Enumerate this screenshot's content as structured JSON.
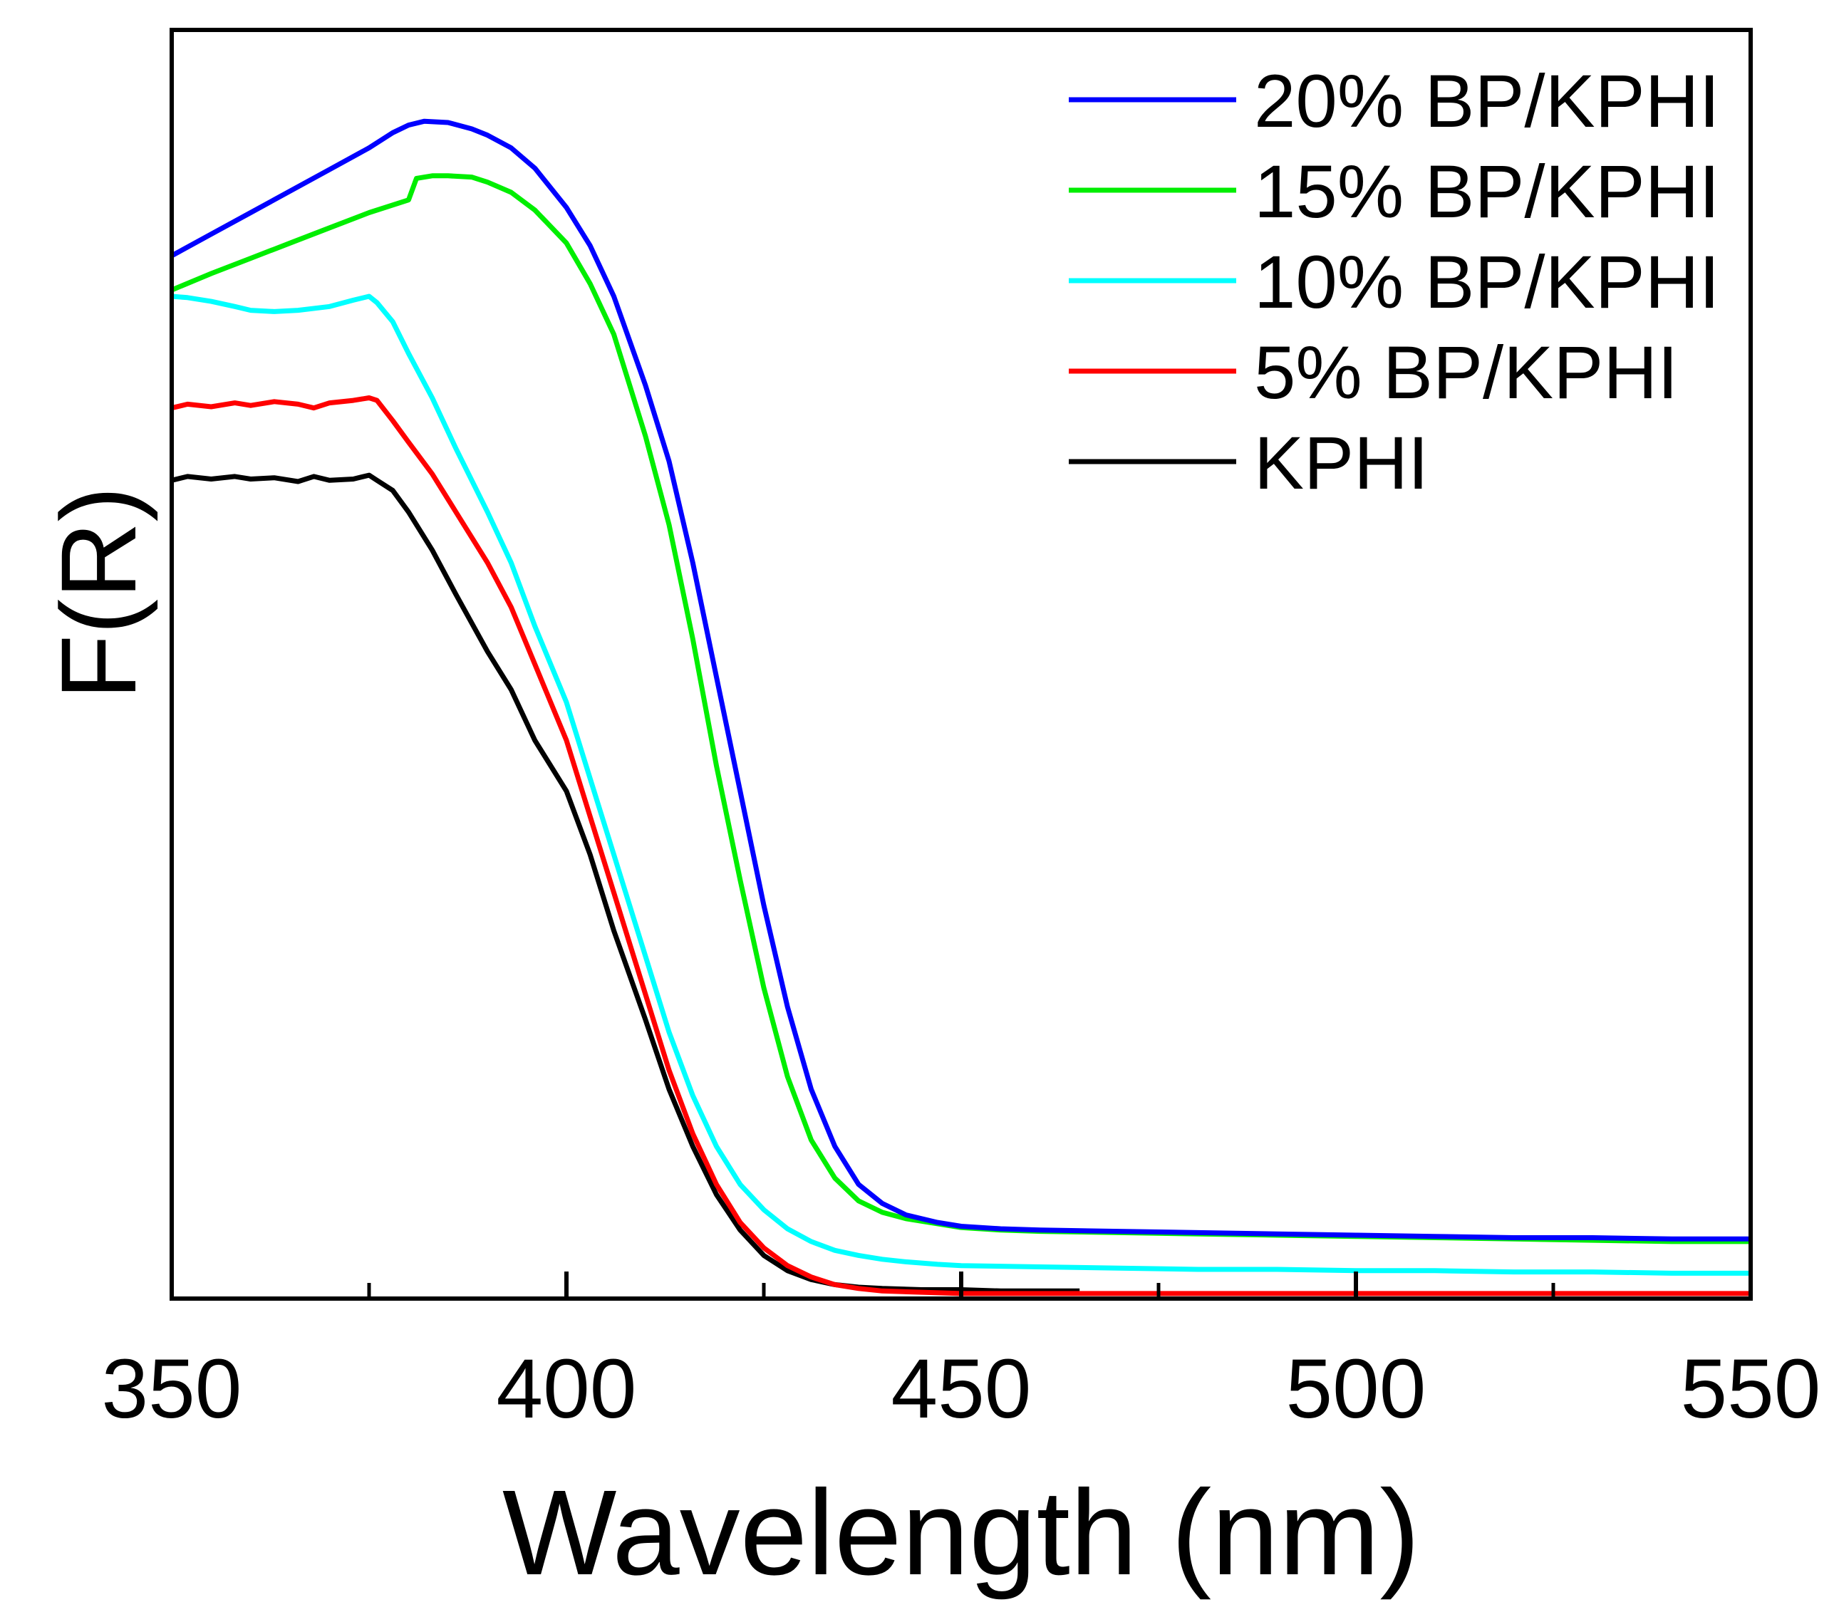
{
  "chart_data": {
    "type": "line",
    "title": "",
    "xlabel": "Wavelength (nm)",
    "ylabel": "F(R)",
    "xlim": [
      350,
      550
    ],
    "ylim": [
      0,
      1
    ],
    "x_ticks": [
      350,
      400,
      450,
      500,
      550
    ],
    "x_tick_labels": [
      "350",
      "400",
      "450",
      "500",
      "550"
    ],
    "x_minor_ticks": [
      375,
      425,
      475,
      525
    ],
    "y_ticks_shown": false,
    "grid": false,
    "legend_position": "top-right",
    "series": [
      {
        "name": "20% BP/KPHI",
        "color": "#0000ff",
        "points": [
          [
            350,
            0.822
          ],
          [
            355,
            0.839
          ],
          [
            360,
            0.856
          ],
          [
            365,
            0.873
          ],
          [
            370,
            0.89
          ],
          [
            375,
            0.907
          ],
          [
            378,
            0.919
          ],
          [
            380,
            0.925
          ],
          [
            382,
            0.928
          ],
          [
            385,
            0.927
          ],
          [
            388,
            0.922
          ],
          [
            390,
            0.917
          ],
          [
            393,
            0.907
          ],
          [
            396,
            0.891
          ],
          [
            400,
            0.86
          ],
          [
            403,
            0.83
          ],
          [
            406,
            0.79
          ],
          [
            410,
            0.72
          ],
          [
            413,
            0.66
          ],
          [
            416,
            0.58
          ],
          [
            419,
            0.49
          ],
          [
            422,
            0.4
          ],
          [
            425,
            0.31
          ],
          [
            428,
            0.23
          ],
          [
            431,
            0.165
          ],
          [
            434,
            0.12
          ],
          [
            437,
            0.09
          ],
          [
            440,
            0.075
          ],
          [
            443,
            0.066
          ],
          [
            447,
            0.06
          ],
          [
            450,
            0.057
          ],
          [
            455,
            0.055
          ],
          [
            460,
            0.054
          ],
          [
            470,
            0.053
          ],
          [
            480,
            0.052
          ],
          [
            490,
            0.051
          ],
          [
            500,
            0.05
          ],
          [
            510,
            0.049
          ],
          [
            520,
            0.048
          ],
          [
            530,
            0.048
          ],
          [
            540,
            0.047
          ],
          [
            550,
            0.047
          ]
        ]
      },
      {
        "name": "15% BP/KPHI",
        "color": "#00ee00",
        "points": [
          [
            350,
            0.795
          ],
          [
            355,
            0.808
          ],
          [
            360,
            0.82
          ],
          [
            365,
            0.832
          ],
          [
            370,
            0.844
          ],
          [
            375,
            0.856
          ],
          [
            380,
            0.866
          ],
          [
            381,
            0.883
          ],
          [
            383,
            0.885
          ],
          [
            385,
            0.885
          ],
          [
            388,
            0.884
          ],
          [
            390,
            0.88
          ],
          [
            393,
            0.872
          ],
          [
            396,
            0.858
          ],
          [
            400,
            0.832
          ],
          [
            403,
            0.8
          ],
          [
            406,
            0.76
          ],
          [
            410,
            0.68
          ],
          [
            413,
            0.61
          ],
          [
            416,
            0.52
          ],
          [
            419,
            0.42
          ],
          [
            422,
            0.33
          ],
          [
            425,
            0.245
          ],
          [
            428,
            0.175
          ],
          [
            431,
            0.125
          ],
          [
            434,
            0.095
          ],
          [
            437,
            0.077
          ],
          [
            440,
            0.068
          ],
          [
            443,
            0.063
          ],
          [
            447,
            0.059
          ],
          [
            450,
            0.056
          ],
          [
            455,
            0.054
          ],
          [
            460,
            0.053
          ],
          [
            470,
            0.052
          ],
          [
            480,
            0.051
          ],
          [
            490,
            0.05
          ],
          [
            500,
            0.049
          ],
          [
            510,
            0.048
          ],
          [
            520,
            0.047
          ],
          [
            530,
            0.046
          ],
          [
            540,
            0.045
          ],
          [
            550,
            0.045
          ]
        ]
      },
      {
        "name": "10% BP/KPHI",
        "color": "#00ffff",
        "points": [
          [
            350,
            0.79
          ],
          [
            352,
            0.789
          ],
          [
            355,
            0.786
          ],
          [
            358,
            0.782
          ],
          [
            360,
            0.779
          ],
          [
            363,
            0.778
          ],
          [
            366,
            0.779
          ],
          [
            370,
            0.782
          ],
          [
            373,
            0.787
          ],
          [
            375,
            0.79
          ],
          [
            376,
            0.785
          ],
          [
            378,
            0.77
          ],
          [
            380,
            0.745
          ],
          [
            383,
            0.71
          ],
          [
            386,
            0.67
          ],
          [
            390,
            0.62
          ],
          [
            393,
            0.58
          ],
          [
            396,
            0.53
          ],
          [
            400,
            0.47
          ],
          [
            403,
            0.41
          ],
          [
            406,
            0.35
          ],
          [
            410,
            0.27
          ],
          [
            413,
            0.21
          ],
          [
            416,
            0.16
          ],
          [
            419,
            0.12
          ],
          [
            422,
            0.09
          ],
          [
            425,
            0.07
          ],
          [
            428,
            0.055
          ],
          [
            431,
            0.045
          ],
          [
            434,
            0.038
          ],
          [
            437,
            0.034
          ],
          [
            440,
            0.031
          ],
          [
            443,
            0.029
          ],
          [
            447,
            0.027
          ],
          [
            450,
            0.026
          ],
          [
            460,
            0.025
          ],
          [
            470,
            0.024
          ],
          [
            480,
            0.023
          ],
          [
            490,
            0.023
          ],
          [
            500,
            0.022
          ],
          [
            510,
            0.022
          ],
          [
            520,
            0.021
          ],
          [
            530,
            0.021
          ],
          [
            540,
            0.02
          ],
          [
            550,
            0.02
          ]
        ]
      },
      {
        "name": "5% BP/KPHI",
        "color": "#ff0000",
        "points": [
          [
            350,
            0.702
          ],
          [
            352,
            0.705
          ],
          [
            355,
            0.703
          ],
          [
            358,
            0.706
          ],
          [
            360,
            0.704
          ],
          [
            363,
            0.707
          ],
          [
            366,
            0.705
          ],
          [
            368,
            0.702
          ],
          [
            370,
            0.706
          ],
          [
            373,
            0.708
          ],
          [
            375,
            0.71
          ],
          [
            376,
            0.708
          ],
          [
            378,
            0.692
          ],
          [
            380,
            0.675
          ],
          [
            383,
            0.65
          ],
          [
            386,
            0.62
          ],
          [
            390,
            0.58
          ],
          [
            393,
            0.545
          ],
          [
            396,
            0.5
          ],
          [
            400,
            0.44
          ],
          [
            403,
            0.38
          ],
          [
            406,
            0.32
          ],
          [
            410,
            0.24
          ],
          [
            413,
            0.18
          ],
          [
            416,
            0.13
          ],
          [
            419,
            0.09
          ],
          [
            422,
            0.06
          ],
          [
            425,
            0.04
          ],
          [
            428,
            0.026
          ],
          [
            431,
            0.017
          ],
          [
            434,
            0.011
          ],
          [
            437,
            0.008
          ],
          [
            440,
            0.006
          ],
          [
            445,
            0.005
          ],
          [
            450,
            0.004
          ],
          [
            460,
            0.004
          ],
          [
            470,
            0.004
          ],
          [
            480,
            0.004
          ],
          [
            490,
            0.004
          ],
          [
            500,
            0.004
          ],
          [
            510,
            0.004
          ],
          [
            520,
            0.004
          ],
          [
            530,
            0.004
          ],
          [
            540,
            0.004
          ],
          [
            550,
            0.004
          ]
        ]
      },
      {
        "name": "KPHI",
        "color": "#000000",
        "points": [
          [
            350,
            0.645
          ],
          [
            352,
            0.648
          ],
          [
            355,
            0.646
          ],
          [
            358,
            0.648
          ],
          [
            360,
            0.646
          ],
          [
            363,
            0.647
          ],
          [
            366,
            0.644
          ],
          [
            368,
            0.648
          ],
          [
            370,
            0.645
          ],
          [
            373,
            0.646
          ],
          [
            375,
            0.649
          ],
          [
            376,
            0.645
          ],
          [
            378,
            0.637
          ],
          [
            380,
            0.62
          ],
          [
            383,
            0.59
          ],
          [
            386,
            0.555
          ],
          [
            390,
            0.51
          ],
          [
            393,
            0.48
          ],
          [
            396,
            0.44
          ],
          [
            400,
            0.4
          ],
          [
            403,
            0.35
          ],
          [
            406,
            0.29
          ],
          [
            410,
            0.22
          ],
          [
            413,
            0.165
          ],
          [
            416,
            0.12
          ],
          [
            419,
            0.082
          ],
          [
            422,
            0.054
          ],
          [
            425,
            0.034
          ],
          [
            428,
            0.022
          ],
          [
            431,
            0.015
          ],
          [
            434,
            0.011
          ],
          [
            437,
            0.009
          ],
          [
            440,
            0.008
          ],
          [
            445,
            0.007
          ],
          [
            450,
            0.007
          ],
          [
            455,
            0.006
          ],
          [
            460,
            0.006
          ],
          [
            465,
            0.006
          ]
        ]
      }
    ]
  }
}
